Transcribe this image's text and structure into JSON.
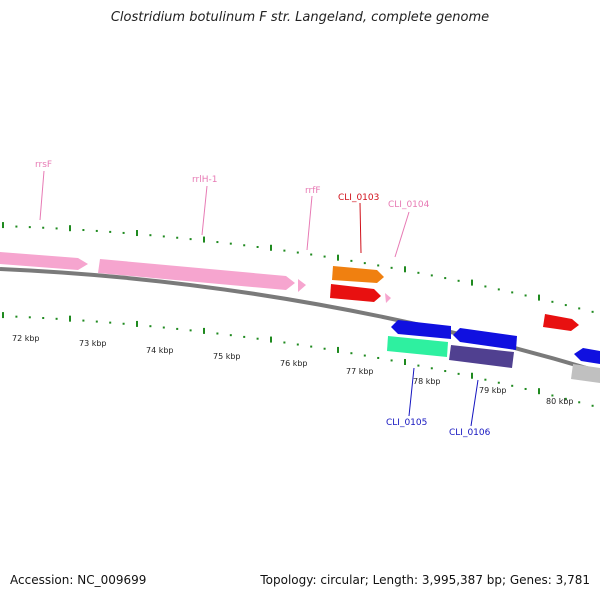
{
  "title": "Clostridium botulinum F str. Langeland, complete genome",
  "footer": {
    "accession": "Accession: NC_009699",
    "stats": "Topology: circular; Length: 3,995,387 bp; Genes: 3,781"
  },
  "colors": {
    "backbone": "#7a7a7a",
    "ticks": "#1f8a1f",
    "pink": "#f6a5cf",
    "pink_label": "#e77ab4",
    "red": "#e81010",
    "red_label": "#d0101a",
    "orange": "#f08010",
    "blue": "#1010e0",
    "blue_label": "#1515c0",
    "green": "#2ef0a0",
    "purple": "#504090",
    "gray": "#c0c0c0"
  },
  "scale_labels": [
    "72 kbp",
    "73 kbp",
    "74 kbp",
    "75 kbp",
    "76 kbp",
    "77 kbp",
    "78 kbp",
    "79 kbp",
    "80 kbp"
  ],
  "genes": {
    "rrsF": "rrsF",
    "rrlH1": "rrlH-1",
    "rrfF": "rrfF",
    "cli0103": "CLI_0103",
    "cli0104": "CLI_0104",
    "cli0105": "CLI_0105",
    "cli0106": "CLI_0106"
  }
}
